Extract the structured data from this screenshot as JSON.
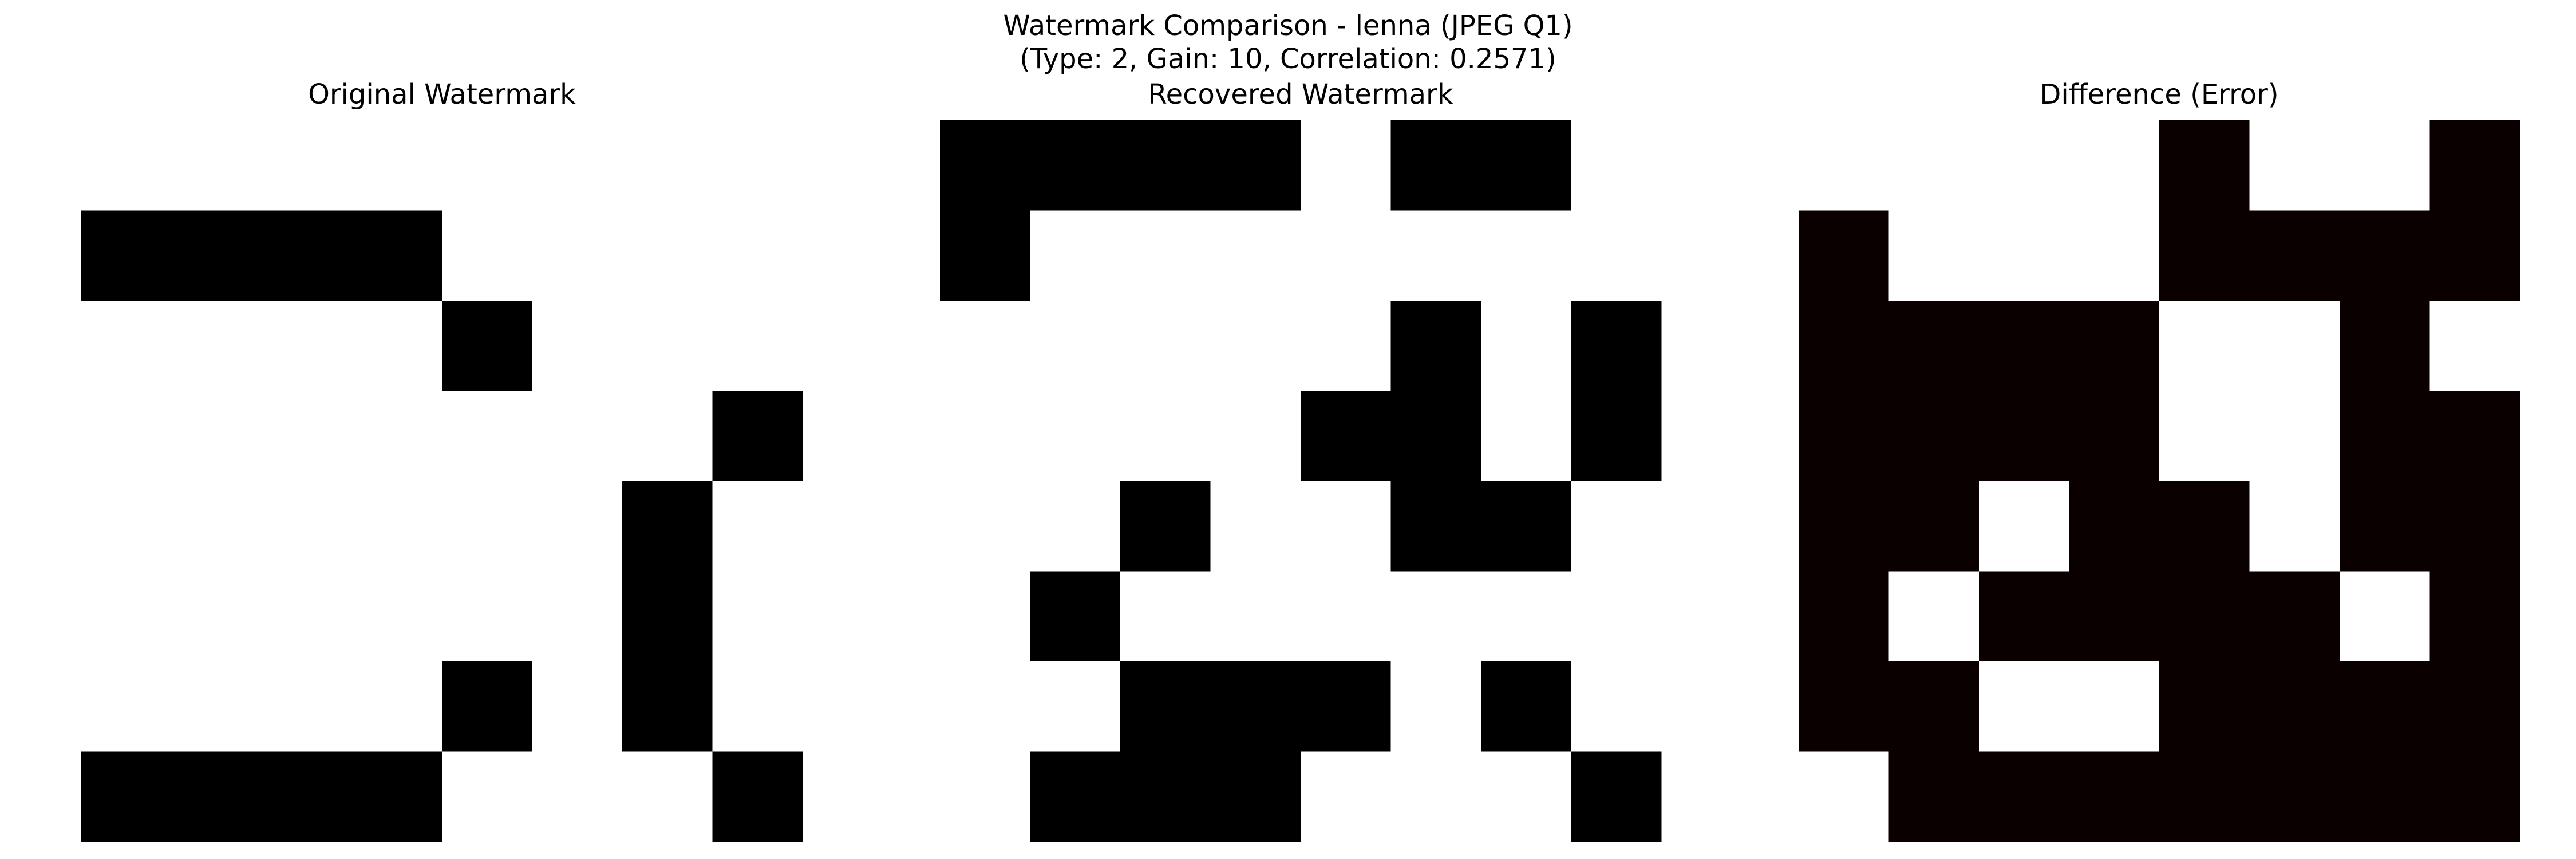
{
  "figure": {
    "title_line1": "Watermark Comparison - lenna (JPEG Q1)",
    "title_line2": "(Type: 2, Gain: 10, Correlation: 0.2571)"
  },
  "chart_data": [
    {
      "type": "heatmap",
      "title": "Original Watermark",
      "rows": 8,
      "cols": 8,
      "colormap": [
        "#ffffff",
        "#000000"
      ],
      "grid": false,
      "matrix": [
        [
          0,
          0,
          0,
          0,
          0,
          0,
          0,
          0
        ],
        [
          1,
          1,
          1,
          1,
          0,
          0,
          0,
          0
        ],
        [
          0,
          0,
          0,
          0,
          1,
          0,
          0,
          0
        ],
        [
          0,
          0,
          0,
          0,
          0,
          0,
          0,
          1
        ],
        [
          0,
          0,
          0,
          0,
          0,
          0,
          1,
          0
        ],
        [
          0,
          0,
          0,
          0,
          0,
          0,
          1,
          0
        ],
        [
          0,
          0,
          0,
          0,
          1,
          0,
          1,
          0
        ],
        [
          1,
          1,
          1,
          1,
          0,
          0,
          0,
          1
        ]
      ]
    },
    {
      "type": "heatmap",
      "title": "Recovered Watermark",
      "rows": 8,
      "cols": 8,
      "colormap": [
        "#ffffff",
        "#000000"
      ],
      "grid": false,
      "matrix": [
        [
          1,
          1,
          1,
          1,
          0,
          1,
          1,
          0
        ],
        [
          1,
          0,
          0,
          0,
          0,
          0,
          0,
          0
        ],
        [
          0,
          0,
          0,
          0,
          0,
          1,
          0,
          1
        ],
        [
          0,
          0,
          0,
          0,
          1,
          1,
          0,
          1
        ],
        [
          0,
          0,
          1,
          0,
          0,
          1,
          1,
          0
        ],
        [
          0,
          1,
          0,
          0,
          0,
          0,
          0,
          0
        ],
        [
          0,
          0,
          1,
          1,
          1,
          0,
          1,
          0
        ],
        [
          0,
          1,
          1,
          1,
          0,
          0,
          0,
          1
        ]
      ]
    },
    {
      "type": "heatmap",
      "title": "Difference (Error)",
      "rows": 8,
      "cols": 8,
      "colormap": [
        "#ffffff",
        "#0b0000"
      ],
      "grid": false,
      "matrix": [
        [
          0,
          0,
          0,
          0,
          1,
          0,
          0,
          1
        ],
        [
          1,
          0,
          0,
          0,
          1,
          1,
          1,
          1
        ],
        [
          1,
          1,
          1,
          1,
          0,
          0,
          1,
          0
        ],
        [
          1,
          1,
          1,
          1,
          0,
          0,
          1,
          1
        ],
        [
          1,
          1,
          0,
          1,
          1,
          0,
          1,
          1
        ],
        [
          1,
          0,
          1,
          1,
          1,
          1,
          0,
          1
        ],
        [
          1,
          1,
          0,
          0,
          1,
          1,
          1,
          1
        ],
        [
          0,
          1,
          1,
          1,
          1,
          1,
          1,
          1
        ]
      ]
    }
  ]
}
